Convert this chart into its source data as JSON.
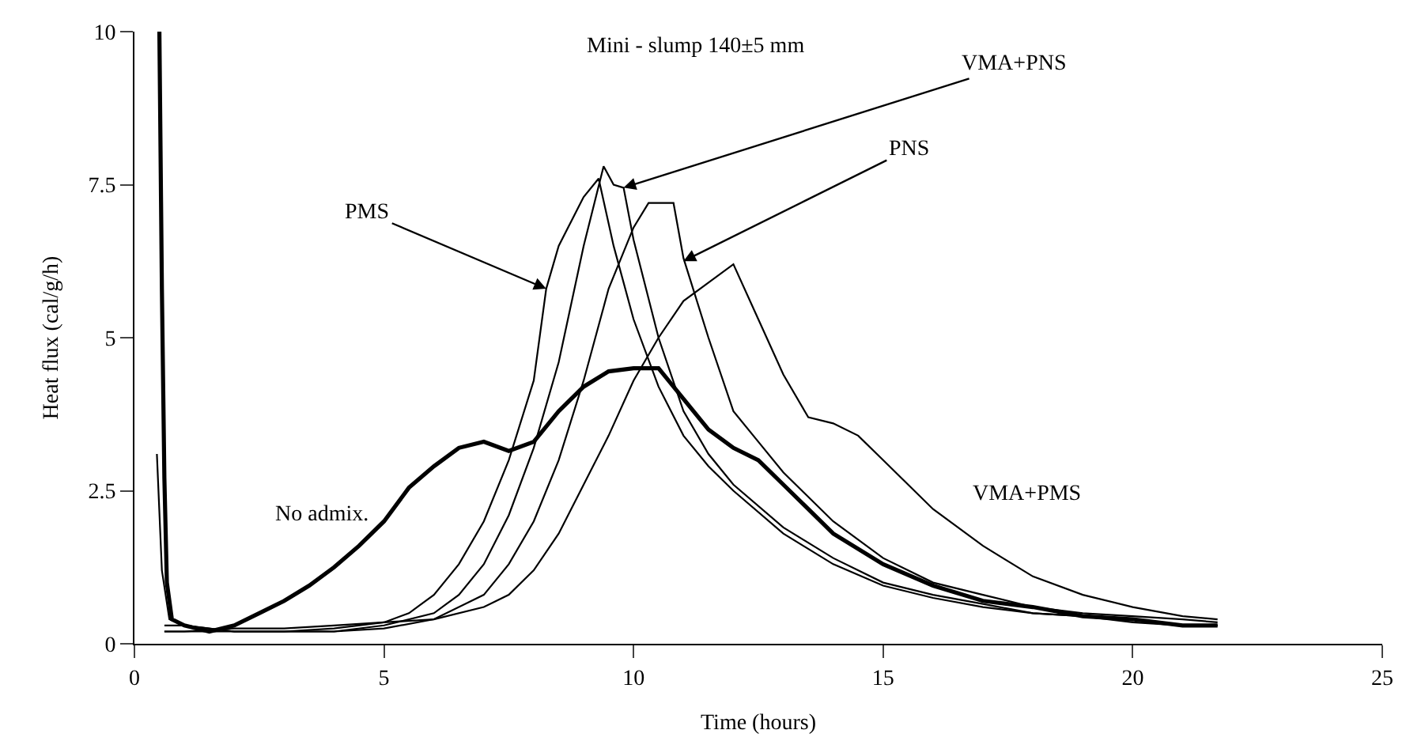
{
  "chart_data": {
    "type": "line",
    "title": "Mini - slump 140±5 mm",
    "xlabel": "Time (hours)",
    "ylabel": "Heat flux (cal/g/h)",
    "xlim": [
      0,
      25
    ],
    "xticks": [
      0,
      5,
      10,
      15,
      20,
      25
    ],
    "ylim": [
      0,
      10
    ],
    "yticks": [
      0,
      2.5,
      5,
      7.5,
      10
    ],
    "marker": "none",
    "line_style": "solid",
    "series": [
      {
        "color": "#000000",
        "x": [
          0.5,
          0.55,
          0.6,
          0.65,
          0.75,
          1,
          1.5,
          2,
          2.5,
          3,
          3.5,
          4,
          4.5,
          5,
          5.5,
          6,
          6.5,
          7,
          7.5,
          8,
          8.5,
          9,
          9.5,
          10,
          10.5,
          11,
          11.5,
          12,
          12.5,
          13,
          13.5,
          14,
          15,
          16,
          17,
          18,
          19,
          20,
          21,
          21.7
        ],
        "values": [
          10,
          5.8,
          2.7,
          1.0,
          0.4,
          0.3,
          0.2,
          0.3,
          0.5,
          0.7,
          0.95,
          1.25,
          1.6,
          2.0,
          2.55,
          2.9,
          3.2,
          3.3,
          3.15,
          3.3,
          3.8,
          4.2,
          4.45,
          4.5,
          4.5,
          4.0,
          3.5,
          3.2,
          3.0,
          2.6,
          2.2,
          1.8,
          1.3,
          0.95,
          0.7,
          0.6,
          0.45,
          0.4,
          0.3,
          0.3
        ]
      },
      {
        "color": "#000000",
        "x": [
          0.45,
          0.55,
          0.7,
          1,
          2,
          3,
          4,
          5,
          5.5,
          6,
          6.5,
          7,
          7.5,
          8,
          8.25,
          8.5,
          9,
          9.3,
          9.6,
          10,
          10.5,
          11,
          11.5,
          12,
          13,
          14,
          15,
          16,
          17,
          18,
          19,
          20,
          21,
          21.7
        ],
        "values": [
          3.1,
          1.2,
          0.4,
          0.3,
          0.2,
          0.2,
          0.25,
          0.35,
          0.5,
          0.8,
          1.3,
          2.0,
          3.0,
          4.3,
          5.8,
          6.5,
          7.3,
          7.6,
          6.5,
          5.3,
          4.2,
          3.4,
          2.9,
          2.5,
          1.8,
          1.3,
          0.95,
          0.75,
          0.6,
          0.5,
          0.45,
          0.35,
          0.3,
          0.3
        ]
      },
      {
        "color": "#000000",
        "x": [
          0.6,
          1,
          2,
          3,
          4,
          5,
          6,
          6.5,
          7,
          7.5,
          8,
          8.5,
          9,
          9.4,
          9.6,
          9.8,
          10,
          10.5,
          11,
          11.5,
          12,
          13,
          14,
          15,
          16,
          17,
          18,
          19,
          20,
          21,
          21.7
        ],
        "values": [
          0.3,
          0.3,
          0.2,
          0.2,
          0.2,
          0.3,
          0.5,
          0.8,
          1.3,
          2.1,
          3.2,
          4.6,
          6.5,
          7.8,
          7.5,
          7.45,
          6.6,
          5.0,
          3.8,
          3.1,
          2.6,
          1.9,
          1.4,
          1.0,
          0.8,
          0.65,
          0.5,
          0.45,
          0.4,
          0.3,
          0.3
        ]
      },
      {
        "color": "#000000",
        "x": [
          0.6,
          1,
          2,
          3,
          4,
          5,
          6,
          7,
          7.5,
          8,
          8.5,
          9,
          9.5,
          10,
          10.3,
          10.8,
          11,
          11.5,
          12,
          12.5,
          13,
          14,
          15,
          16,
          17,
          18,
          19,
          20,
          21,
          21.7
        ],
        "values": [
          0.2,
          0.2,
          0.2,
          0.2,
          0.2,
          0.25,
          0.4,
          0.8,
          1.3,
          2.0,
          3.0,
          4.3,
          5.8,
          6.8,
          7.2,
          7.2,
          6.3,
          5.0,
          3.8,
          3.3,
          2.8,
          2.0,
          1.4,
          1.0,
          0.8,
          0.6,
          0.5,
          0.45,
          0.4,
          0.35
        ]
      },
      {
        "color": "#000000",
        "x": [
          0.6,
          1,
          2,
          3,
          4,
          5,
          6,
          7,
          7.5,
          8,
          8.5,
          9,
          9.5,
          10,
          10.5,
          11,
          11.5,
          12,
          12.5,
          13,
          13.5,
          14,
          14.5,
          15,
          16,
          17,
          18,
          19,
          20,
          21,
          21.7
        ],
        "values": [
          0.2,
          0.2,
          0.25,
          0.25,
          0.3,
          0.35,
          0.4,
          0.6,
          0.8,
          1.2,
          1.8,
          2.6,
          3.4,
          4.3,
          5.0,
          5.6,
          5.9,
          6.2,
          5.3,
          4.4,
          3.7,
          3.6,
          3.4,
          3.0,
          2.2,
          1.6,
          1.1,
          0.8,
          0.6,
          0.45,
          0.4
        ]
      }
    ],
    "annotations": [
      {
        "text": "PMS",
        "x": 8.25,
        "y": 5.8
      },
      {
        "text": "VMA+PNS",
        "x": 9.8,
        "y": 7.45
      },
      {
        "text": "PNS",
        "x": 11.0,
        "y": 6.25
      },
      "No admix.",
      "VMA+PMS"
    ]
  }
}
